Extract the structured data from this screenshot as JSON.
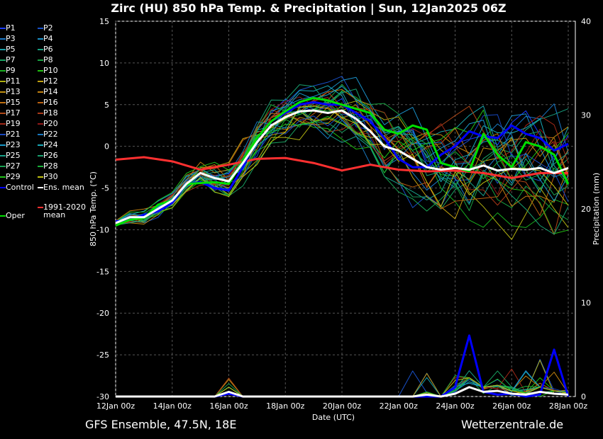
{
  "title": "Zirc  (HU)  850 hPa Temp. & Precipitation | Sun, 12Jan2025 06Z",
  "footer_left": "GFS Ensemble, 47.5N, 18E",
  "footer_right": "Wetterzentrale.de",
  "legend": [
    {
      "label": "P1",
      "color": "#1a3cff"
    },
    {
      "label": "P2",
      "color": "#1850c8"
    },
    {
      "label": "P3",
      "color": "#1a78c8"
    },
    {
      "label": "P4",
      "color": "#1a90c8"
    },
    {
      "label": "P5",
      "color": "#18a0a8"
    },
    {
      "label": "P6",
      "color": "#18a080"
    },
    {
      "label": "P7",
      "color": "#18a060"
    },
    {
      "label": "P8",
      "color": "#18a040"
    },
    {
      "label": "P9",
      "color": "#18b020"
    },
    {
      "label": "P10",
      "color": "#20c010"
    },
    {
      "label": "P11",
      "color": "#b0b010"
    },
    {
      "label": "P12",
      "color": "#c0a010"
    },
    {
      "label": "P13",
      "color": "#c09010"
    },
    {
      "label": "P14",
      "color": "#c08010"
    },
    {
      "label": "P15",
      "color": "#c07010"
    },
    {
      "label": "P16",
      "color": "#b86010"
    },
    {
      "label": "P17",
      "color": "#b04818"
    },
    {
      "label": "P18",
      "color": "#a83818"
    },
    {
      "label": "P19",
      "color": "#a02818"
    },
    {
      "label": "P20",
      "color": "#901818"
    },
    {
      "label": "P21",
      "color": "#1848c0"
    },
    {
      "label": "P22",
      "color": "#1878c0"
    },
    {
      "label": "P23",
      "color": "#1898c8"
    },
    {
      "label": "P24",
      "color": "#18a8b8"
    },
    {
      "label": "P25",
      "color": "#18a088"
    },
    {
      "label": "P26",
      "color": "#18a070"
    },
    {
      "label": "P27",
      "color": "#18a050"
    },
    {
      "label": "P28",
      "color": "#18b038"
    },
    {
      "label": "P29",
      "color": "#20c018"
    },
    {
      "label": "P30",
      "color": "#c0c010"
    }
  ],
  "legend_special": {
    "control": "Control",
    "ens_mean": "Ens. mean",
    "climate": "1991-2020 mean",
    "oper": "Oper"
  },
  "colors": {
    "control": "#0000ff",
    "ens_mean": "#ffffff",
    "climate": "#ff3030",
    "oper": "#00e000",
    "grid": "#555555"
  },
  "chart_data": {
    "type": "line",
    "title": "850 hPa Temp. & Precipitation",
    "xlabel": "Date (UTC)",
    "ylabel": "850 hPa Temp. (°C)",
    "y2label": "Precipitation (mm)",
    "xlim_days": [
      0,
      16.25
    ],
    "ylim": [
      -30,
      15
    ],
    "y2lim": [
      0,
      40
    ],
    "grid": true,
    "x_ticks": [
      {
        "day": 0,
        "label": "12Jan 00z"
      },
      {
        "day": 2,
        "label": "14Jan 00z"
      },
      {
        "day": 4,
        "label": "16Jan 00z"
      },
      {
        "day": 6,
        "label": "18Jan 00z"
      },
      {
        "day": 8,
        "label": "20Jan 00z"
      },
      {
        "day": 10,
        "label": "22Jan 00z"
      },
      {
        "day": 12,
        "label": "24Jan 00z"
      },
      {
        "day": 14,
        "label": "26Jan 00z"
      },
      {
        "day": 16,
        "label": "28Jan 00z"
      }
    ],
    "y_ticks": [
      15,
      10,
      5,
      0,
      -5,
      -10,
      -15,
      -20,
      -25,
      -30
    ],
    "y2_ticks": [
      40,
      30,
      20,
      10,
      0
    ],
    "x_step_days": 0.5,
    "ens_mean": [
      -9.2,
      -8.5,
      -8.5,
      -7.5,
      -6.5,
      -4.5,
      -3.2,
      -3.8,
      -4.2,
      -2,
      0.5,
      2.5,
      3.5,
      4.2,
      4.3,
      4,
      4.3,
      3.3,
      1.8,
      0,
      -0.5,
      -1.5,
      -2.5,
      -2.8,
      -2.6,
      -2.8,
      -2.3,
      -2.9,
      -2.7,
      -2.8,
      -2.6,
      -3.2,
      -2.6
    ],
    "control": [
      -9,
      -8.8,
      -8.2,
      -7.8,
      -6.8,
      -4.5,
      -4.3,
      -5,
      -5.3,
      -2.5,
      1,
      3,
      4,
      5,
      5.3,
      5,
      5,
      4,
      3,
      1,
      -1.5,
      -2.5,
      -2.5,
      -1,
      0,
      1.8,
      1.2,
      1,
      2.5,
      1.5,
      1,
      -0.5,
      0.3
    ],
    "oper": [
      -9.5,
      -8.8,
      -8.6,
      -7,
      -6.5,
      -4.5,
      -4.4,
      -4.3,
      -4.5,
      -1.8,
      1,
      3,
      4.2,
      5.3,
      5.8,
      5.5,
      5,
      4.5,
      4,
      2,
      1.5,
      2.5,
      2,
      -2,
      -2.5,
      -3,
      1.5,
      -1,
      -2.5,
      0.5,
      0,
      -1,
      -4.5
    ],
    "climate_mean": [
      -1.6,
      -1.3,
      -1.8,
      -2.8,
      -2.2,
      -1.5,
      -1.4,
      -2,
      -2.9,
      -2.2,
      -2.8,
      -3,
      -2.9,
      -3.2,
      -3.8,
      -3.2,
      -3.2
    ],
    "climate_step_days": 1,
    "member_spread": [
      0.5,
      0.8,
      0.9,
      1,
      1,
      1.2,
      1.5,
      2,
      2.2,
      2.5,
      3,
      3,
      3,
      3,
      2.8,
      3,
      3.5,
      3.8,
      4,
      4.5,
      4.5,
      5,
      5,
      5.5,
      5.5,
      6,
      6,
      6,
      6.5,
      6.5,
      6.5,
      7,
      7
    ],
    "precip_mean": [
      0,
      0,
      0,
      0,
      0,
      0,
      0,
      0,
      0.5,
      0,
      0,
      0,
      0,
      0,
      0,
      0,
      0,
      0,
      0,
      0,
      0,
      0,
      0.2,
      0,
      0.3,
      1,
      0.5,
      0.6,
      0.3,
      0.2,
      0.5,
      0.3,
      0.2
    ],
    "precip_control": [
      0,
      0,
      0,
      0,
      0,
      0,
      0,
      0,
      0.3,
      0,
      0,
      0,
      0,
      0,
      0,
      0,
      0,
      0,
      0,
      0,
      0,
      0,
      0,
      0,
      1,
      6.5,
      0.5,
      0.2,
      0.3,
      0,
      0.2,
      5,
      0
    ]
  }
}
